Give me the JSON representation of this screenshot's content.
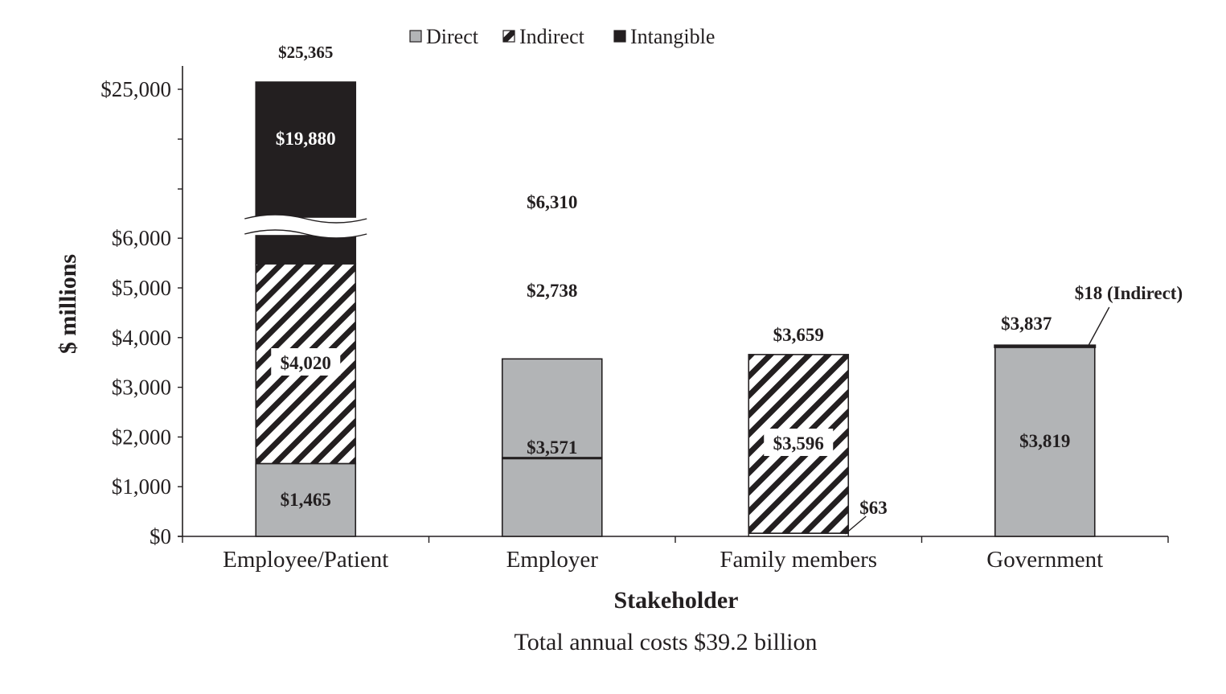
{
  "chart_data": {
    "type": "bar",
    "stacked": true,
    "categories": [
      "Employee/Patient",
      "Employer",
      "Family members",
      "Government"
    ],
    "series": [
      {
        "name": "Direct",
        "color": "#b2b4b6",
        "pattern": "solid",
        "values": [
          1465,
          3571,
          0,
          3819
        ]
      },
      {
        "name": "Indirect",
        "color": "#231f20",
        "pattern": "diagonal-hatch",
        "values": [
          4020,
          2738,
          3596,
          18
        ]
      },
      {
        "name": "Intangible",
        "color": "#231f20",
        "pattern": "solid",
        "values": [
          19880,
          0,
          63,
          0
        ]
      }
    ],
    "totals": [
      25365,
      6310,
      3659,
      3837
    ],
    "total_labels": [
      "$25,365",
      "$6,310",
      "$3,659",
      "$3,837"
    ],
    "segment_labels": {
      "Direct": [
        "$1,465",
        "$3,571",
        "",
        "$3,819"
      ],
      "Indirect": [
        "$4,020",
        "$2,738",
        "$3,596",
        ""
      ],
      "Intangible": [
        "$19,880",
        "",
        "$63",
        ""
      ]
    },
    "annotations": [
      {
        "category": "Government",
        "text": "$18 (Indirect)"
      }
    ],
    "ylabel": "$ millions",
    "xlabel": "Stakeholder",
    "caption": "Total annual costs $39.2 billion",
    "yticks_lower": [
      0,
      1000,
      2000,
      3000,
      4000,
      5000,
      6000
    ],
    "ytick_labels_lower": [
      "$0",
      "$1,000",
      "$2,000",
      "$3,000",
      "$4,000",
      "$5,000",
      "$6,000"
    ],
    "yticks_upper": [
      25000
    ],
    "ytick_labels_upper": [
      "$25,000"
    ],
    "ylim": [
      0,
      25365
    ],
    "axis_break": true,
    "legend_position": "top-center",
    "grid": false
  }
}
